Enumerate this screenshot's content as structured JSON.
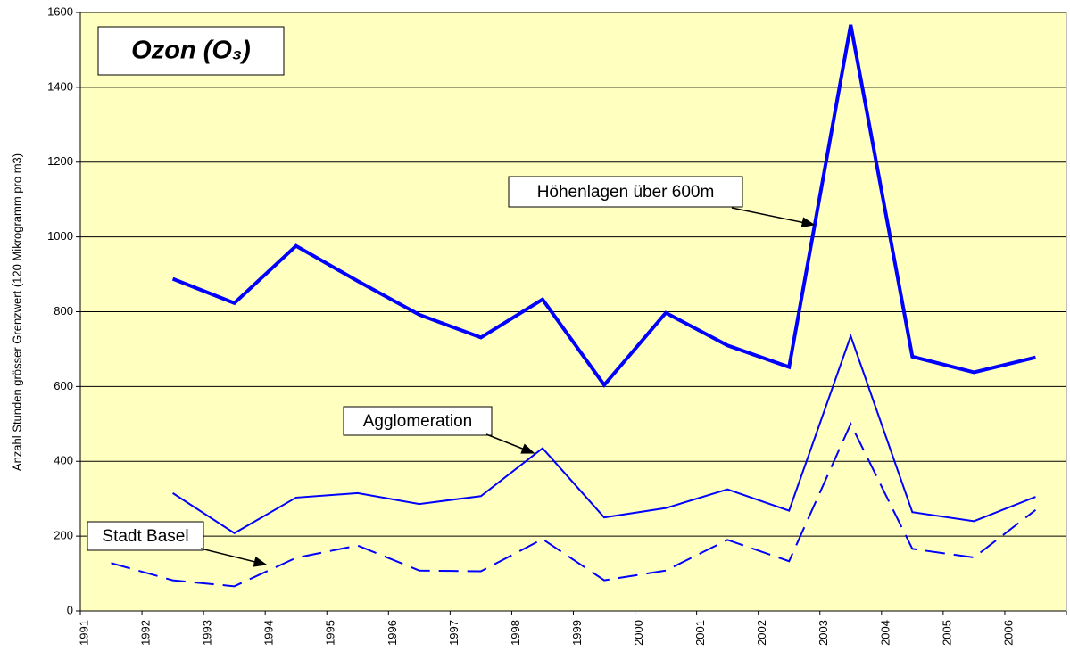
{
  "chart_data": {
    "type": "line",
    "title": "Ozon (O₃)",
    "y_label": "Anzahl Stunden grösser Grenzwert (120 Mikrogramm pro m3)",
    "categories": [
      "1991",
      "1992",
      "1993",
      "1994",
      "1995",
      "1996",
      "1997",
      "1998",
      "1999",
      "2000",
      "2001",
      "2002",
      "2003",
      "2004",
      "2005",
      "2006"
    ],
    "series": [
      {
        "name": "Höhenlagen über 600m",
        "color": "#0000ff",
        "width": 4,
        "dashed": false,
        "values": [
          null,
          888,
          823,
          976,
          882,
          792,
          731,
          833,
          604,
          797,
          710,
          652,
          1567,
          680,
          638,
          678
        ]
      },
      {
        "name": "Agglomeration",
        "color": "#0000ff",
        "width": 2,
        "dashed": false,
        "values": [
          null,
          315,
          208,
          303,
          315,
          286,
          307,
          435,
          250,
          275,
          325,
          268,
          735,
          264,
          240,
          305
        ]
      },
      {
        "name": "Stadt Basel",
        "color": "#0000ff",
        "width": 2,
        "dashed": true,
        "values": [
          128,
          82,
          66,
          142,
          175,
          108,
          106,
          192,
          82,
          108,
          190,
          133,
          500,
          166,
          143,
          270
        ]
      }
    ],
    "ylim": [
      0,
      1600
    ],
    "yticks": [
      0,
      200,
      400,
      600,
      800,
      1000,
      1200,
      1400,
      1600
    ],
    "grid": true
  }
}
